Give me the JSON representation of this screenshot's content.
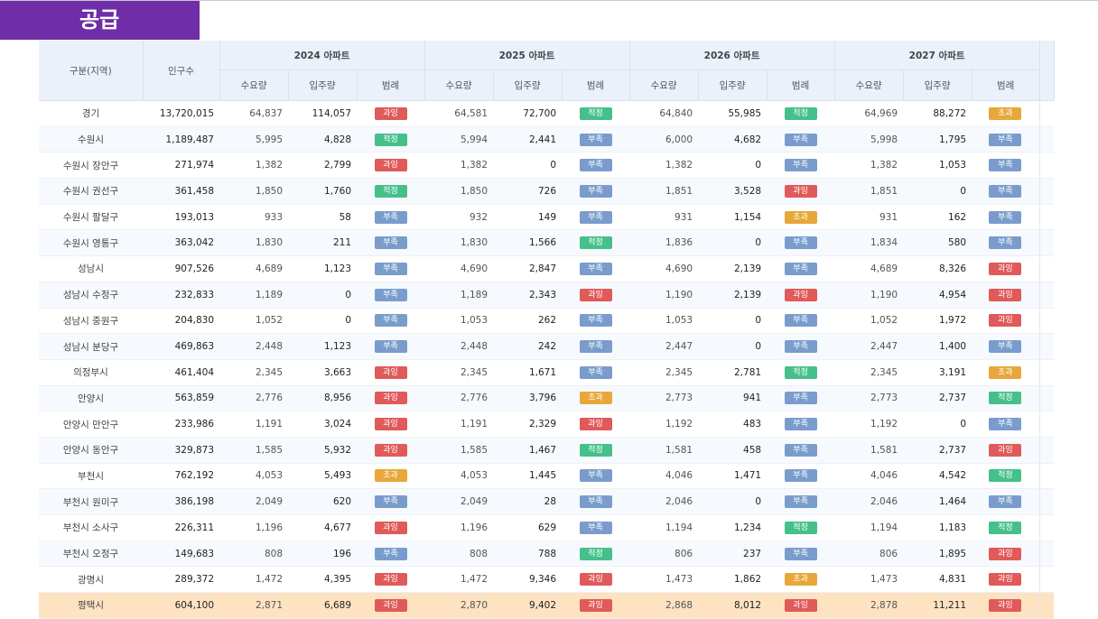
{
  "page_title": "공급",
  "header": {
    "region": "구분(지역)",
    "population": "인구수",
    "years": [
      "2024 아파트",
      "2025 아파트",
      "2026 아파트",
      "2027 아파트"
    ],
    "sub": {
      "demand": "수요량",
      "supply": "입주량",
      "legend": "범례"
    }
  },
  "status_colors": {
    "과잉": "#e05a5a",
    "적정": "#45c08a",
    "부족": "#7a9ccc",
    "초과": "#e8a73a"
  },
  "rows": [
    {
      "name": "경기",
      "pop": "13,720,015",
      "y": [
        [
          "64,837",
          "114,057",
          "과잉"
        ],
        [
          "64,581",
          "72,700",
          "적정"
        ],
        [
          "64,840",
          "55,985",
          "적정"
        ],
        [
          "64,969",
          "88,272",
          "초과"
        ]
      ]
    },
    {
      "name": "수원시",
      "pop": "1,189,487",
      "y": [
        [
          "5,995",
          "4,828",
          "적정"
        ],
        [
          "5,994",
          "2,441",
          "부족"
        ],
        [
          "6,000",
          "4,682",
          "부족"
        ],
        [
          "5,998",
          "1,795",
          "부족"
        ]
      ]
    },
    {
      "name": "수원시 장안구",
      "pop": "271,974",
      "y": [
        [
          "1,382",
          "2,799",
          "과잉"
        ],
        [
          "1,382",
          "0",
          "부족"
        ],
        [
          "1,382",
          "0",
          "부족"
        ],
        [
          "1,382",
          "1,053",
          "부족"
        ]
      ]
    },
    {
      "name": "수원시 권선구",
      "pop": "361,458",
      "y": [
        [
          "1,850",
          "1,760",
          "적정"
        ],
        [
          "1,850",
          "726",
          "부족"
        ],
        [
          "1,851",
          "3,528",
          "과잉"
        ],
        [
          "1,851",
          "0",
          "부족"
        ]
      ]
    },
    {
      "name": "수원시 팔달구",
      "pop": "193,013",
      "y": [
        [
          "933",
          "58",
          "부족"
        ],
        [
          "932",
          "149",
          "부족"
        ],
        [
          "931",
          "1,154",
          "초과"
        ],
        [
          "931",
          "162",
          "부족"
        ]
      ]
    },
    {
      "name": "수원시 영통구",
      "pop": "363,042",
      "y": [
        [
          "1,830",
          "211",
          "부족"
        ],
        [
          "1,830",
          "1,566",
          "적정"
        ],
        [
          "1,836",
          "0",
          "부족"
        ],
        [
          "1,834",
          "580",
          "부족"
        ]
      ]
    },
    {
      "name": "성남시",
      "pop": "907,526",
      "y": [
        [
          "4,689",
          "1,123",
          "부족"
        ],
        [
          "4,690",
          "2,847",
          "부족"
        ],
        [
          "4,690",
          "2,139",
          "부족"
        ],
        [
          "4,689",
          "8,326",
          "과잉"
        ]
      ]
    },
    {
      "name": "성남시 수정구",
      "pop": "232,833",
      "y": [
        [
          "1,189",
          "0",
          "부족"
        ],
        [
          "1,189",
          "2,343",
          "과잉"
        ],
        [
          "1,190",
          "2,139",
          "과잉"
        ],
        [
          "1,190",
          "4,954",
          "과잉"
        ]
      ]
    },
    {
      "name": "성남시 중원구",
      "pop": "204,830",
      "y": [
        [
          "1,052",
          "0",
          "부족"
        ],
        [
          "1,053",
          "262",
          "부족"
        ],
        [
          "1,053",
          "0",
          "부족"
        ],
        [
          "1,052",
          "1,972",
          "과잉"
        ]
      ]
    },
    {
      "name": "성남시 분당구",
      "pop": "469,863",
      "y": [
        [
          "2,448",
          "1,123",
          "부족"
        ],
        [
          "2,448",
          "242",
          "부족"
        ],
        [
          "2,447",
          "0",
          "부족"
        ],
        [
          "2,447",
          "1,400",
          "부족"
        ]
      ]
    },
    {
      "name": "의정부시",
      "pop": "461,404",
      "y": [
        [
          "2,345",
          "3,663",
          "과잉"
        ],
        [
          "2,345",
          "1,671",
          "부족"
        ],
        [
          "2,345",
          "2,781",
          "적정"
        ],
        [
          "2,345",
          "3,191",
          "초과"
        ]
      ]
    },
    {
      "name": "안양시",
      "pop": "563,859",
      "y": [
        [
          "2,776",
          "8,956",
          "과잉"
        ],
        [
          "2,776",
          "3,796",
          "초과"
        ],
        [
          "2,773",
          "941",
          "부족"
        ],
        [
          "2,773",
          "2,737",
          "적정"
        ]
      ]
    },
    {
      "name": "안양시 만안구",
      "pop": "233,986",
      "y": [
        [
          "1,191",
          "3,024",
          "과잉"
        ],
        [
          "1,191",
          "2,329",
          "과잉"
        ],
        [
          "1,192",
          "483",
          "부족"
        ],
        [
          "1,192",
          "0",
          "부족"
        ]
      ]
    },
    {
      "name": "안양시 동안구",
      "pop": "329,873",
      "y": [
        [
          "1,585",
          "5,932",
          "과잉"
        ],
        [
          "1,585",
          "1,467",
          "적정"
        ],
        [
          "1,581",
          "458",
          "부족"
        ],
        [
          "1,581",
          "2,737",
          "과잉"
        ]
      ]
    },
    {
      "name": "부천시",
      "pop": "762,192",
      "y": [
        [
          "4,053",
          "5,493",
          "초과"
        ],
        [
          "4,053",
          "1,445",
          "부족"
        ],
        [
          "4,046",
          "1,471",
          "부족"
        ],
        [
          "4,046",
          "4,542",
          "적정"
        ]
      ]
    },
    {
      "name": "부천시 원미구",
      "pop": "386,198",
      "y": [
        [
          "2,049",
          "620",
          "부족"
        ],
        [
          "2,049",
          "28",
          "부족"
        ],
        [
          "2,046",
          "0",
          "부족"
        ],
        [
          "2,046",
          "1,464",
          "부족"
        ]
      ]
    },
    {
      "name": "부천시 소사구",
      "pop": "226,311",
      "y": [
        [
          "1,196",
          "4,677",
          "과잉"
        ],
        [
          "1,196",
          "629",
          "부족"
        ],
        [
          "1,194",
          "1,234",
          "적정"
        ],
        [
          "1,194",
          "1,183",
          "적정"
        ]
      ]
    },
    {
      "name": "부천시 오정구",
      "pop": "149,683",
      "y": [
        [
          "808",
          "196",
          "부족"
        ],
        [
          "808",
          "788",
          "적정"
        ],
        [
          "806",
          "237",
          "부족"
        ],
        [
          "806",
          "1,895",
          "과잉"
        ]
      ]
    },
    {
      "name": "광명시",
      "pop": "289,372",
      "y": [
        [
          "1,472",
          "4,395",
          "과잉"
        ],
        [
          "1,472",
          "9,346",
          "과잉"
        ],
        [
          "1,473",
          "1,862",
          "초과"
        ],
        [
          "1,473",
          "4,831",
          "과잉"
        ]
      ]
    },
    {
      "name": "평택시",
      "pop": "604,100",
      "highlight": true,
      "y": [
        [
          "2,871",
          "6,689",
          "과잉"
        ],
        [
          "2,870",
          "9,402",
          "과잉"
        ],
        [
          "2,868",
          "8,012",
          "과잉"
        ],
        [
          "2,878",
          "11,211",
          "과잉"
        ]
      ]
    }
  ]
}
